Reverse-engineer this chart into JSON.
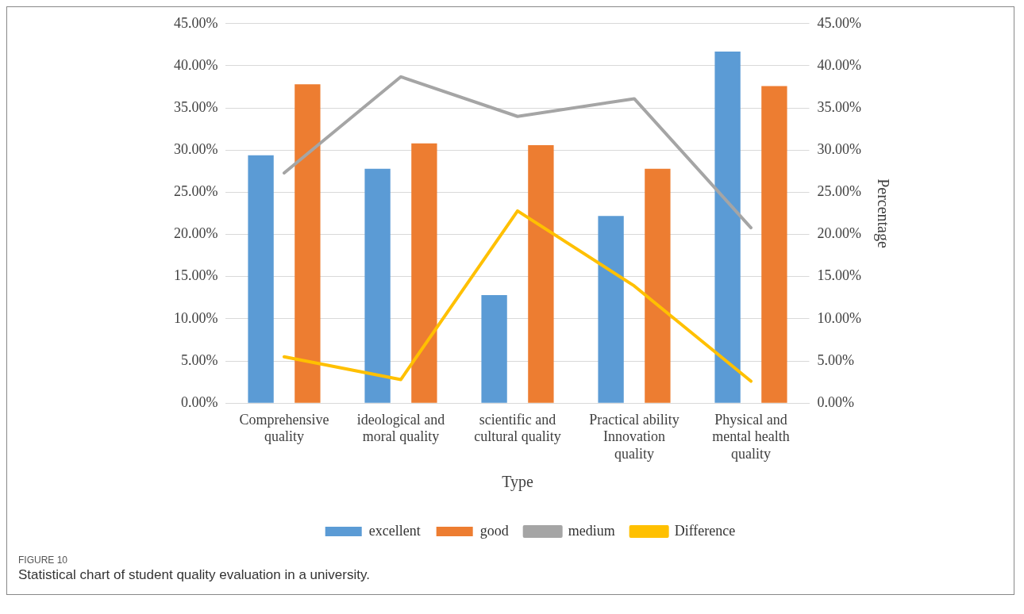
{
  "chart_data": {
    "type": "bar",
    "xlabel": "Type",
    "y2label": "Percentage",
    "categories": [
      "Comprehensive quality",
      "ideological and moral quality",
      "scientific and cultural quality",
      "Practical ability Innovation quality",
      "Physical and mental health quality"
    ],
    "series": [
      {
        "name": "excellent",
        "color": "#5b9bd5",
        "values": [
          29.4,
          27.8,
          12.8,
          22.2,
          41.7
        ]
      },
      {
        "name": "good",
        "color": "#ed7d31",
        "values": [
          37.8,
          30.8,
          30.6,
          27.8,
          37.6
        ]
      },
      {
        "name": "medium",
        "type": "line",
        "axis": "y2",
        "color": "#a5a5a5",
        "values": [
          27.3,
          38.7,
          34.0,
          36.1,
          20.8
        ]
      },
      {
        "name": "Difference",
        "type": "line",
        "axis": "y2",
        "color": "#ffc000",
        "values": [
          5.5,
          2.8,
          22.8,
          13.9,
          2.6
        ]
      }
    ],
    "ylim": [
      0,
      45
    ],
    "yticks": [
      {
        "value": 0,
        "label": "0.00%"
      },
      {
        "value": 5,
        "label": "5.00%"
      },
      {
        "value": 10,
        "label": "10.00%"
      },
      {
        "value": 15,
        "label": "15.00%"
      },
      {
        "value": 20,
        "label": "20.00%"
      },
      {
        "value": 25,
        "label": "25.00%"
      },
      {
        "value": 30,
        "label": "30.00%"
      },
      {
        "value": 35,
        "label": "35.00%"
      },
      {
        "value": 40,
        "label": "40.00%"
      },
      {
        "value": 45,
        "label": "45.00%"
      }
    ],
    "y2lim": [
      0,
      45
    ],
    "y2ticks": [
      {
        "value": 0,
        "label": "0.00%"
      },
      {
        "value": 5,
        "label": "5.00%"
      },
      {
        "value": 10,
        "label": "10.00%"
      },
      {
        "value": 15,
        "label": "15.00%"
      },
      {
        "value": 20,
        "label": "20.00%"
      },
      {
        "value": 25,
        "label": "25.00%"
      },
      {
        "value": 30,
        "label": "30.00%"
      },
      {
        "value": 35,
        "label": "35.00%"
      },
      {
        "value": 40,
        "label": "40.00%"
      },
      {
        "value": 45,
        "label": "45.00%"
      }
    ],
    "grid": "y",
    "legend": "bottom",
    "marker": "none",
    "line_style": "solid",
    "annotations": [
      "FIGURE 10",
      "Statistical chart of student quality evaluation in a university."
    ]
  }
}
